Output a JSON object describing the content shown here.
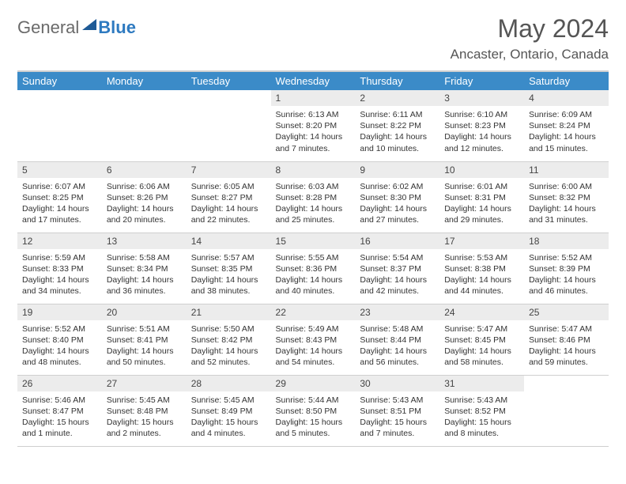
{
  "logo": {
    "text1": "General",
    "text2": "Blue"
  },
  "title": "May 2024",
  "location": "Ancaster, Ontario, Canada",
  "colors": {
    "header_bg": "#3b8bc8",
    "header_text": "#ffffff",
    "daynum_bg": "#ececec",
    "text": "#333333",
    "rule": "#cfcfcf",
    "title_color": "#555555"
  },
  "days_of_week": [
    "Sunday",
    "Monday",
    "Tuesday",
    "Wednesday",
    "Thursday",
    "Friday",
    "Saturday"
  ],
  "weeks": [
    [
      null,
      null,
      null,
      {
        "n": "1",
        "sr": "6:13 AM",
        "ss": "8:20 PM",
        "dl": "14 hours and 7 minutes."
      },
      {
        "n": "2",
        "sr": "6:11 AM",
        "ss": "8:22 PM",
        "dl": "14 hours and 10 minutes."
      },
      {
        "n": "3",
        "sr": "6:10 AM",
        "ss": "8:23 PM",
        "dl": "14 hours and 12 minutes."
      },
      {
        "n": "4",
        "sr": "6:09 AM",
        "ss": "8:24 PM",
        "dl": "14 hours and 15 minutes."
      }
    ],
    [
      {
        "n": "5",
        "sr": "6:07 AM",
        "ss": "8:25 PM",
        "dl": "14 hours and 17 minutes."
      },
      {
        "n": "6",
        "sr": "6:06 AM",
        "ss": "8:26 PM",
        "dl": "14 hours and 20 minutes."
      },
      {
        "n": "7",
        "sr": "6:05 AM",
        "ss": "8:27 PM",
        "dl": "14 hours and 22 minutes."
      },
      {
        "n": "8",
        "sr": "6:03 AM",
        "ss": "8:28 PM",
        "dl": "14 hours and 25 minutes."
      },
      {
        "n": "9",
        "sr": "6:02 AM",
        "ss": "8:30 PM",
        "dl": "14 hours and 27 minutes."
      },
      {
        "n": "10",
        "sr": "6:01 AM",
        "ss": "8:31 PM",
        "dl": "14 hours and 29 minutes."
      },
      {
        "n": "11",
        "sr": "6:00 AM",
        "ss": "8:32 PM",
        "dl": "14 hours and 31 minutes."
      }
    ],
    [
      {
        "n": "12",
        "sr": "5:59 AM",
        "ss": "8:33 PM",
        "dl": "14 hours and 34 minutes."
      },
      {
        "n": "13",
        "sr": "5:58 AM",
        "ss": "8:34 PM",
        "dl": "14 hours and 36 minutes."
      },
      {
        "n": "14",
        "sr": "5:57 AM",
        "ss": "8:35 PM",
        "dl": "14 hours and 38 minutes."
      },
      {
        "n": "15",
        "sr": "5:55 AM",
        "ss": "8:36 PM",
        "dl": "14 hours and 40 minutes."
      },
      {
        "n": "16",
        "sr": "5:54 AM",
        "ss": "8:37 PM",
        "dl": "14 hours and 42 minutes."
      },
      {
        "n": "17",
        "sr": "5:53 AM",
        "ss": "8:38 PM",
        "dl": "14 hours and 44 minutes."
      },
      {
        "n": "18",
        "sr": "5:52 AM",
        "ss": "8:39 PM",
        "dl": "14 hours and 46 minutes."
      }
    ],
    [
      {
        "n": "19",
        "sr": "5:52 AM",
        "ss": "8:40 PM",
        "dl": "14 hours and 48 minutes."
      },
      {
        "n": "20",
        "sr": "5:51 AM",
        "ss": "8:41 PM",
        "dl": "14 hours and 50 minutes."
      },
      {
        "n": "21",
        "sr": "5:50 AM",
        "ss": "8:42 PM",
        "dl": "14 hours and 52 minutes."
      },
      {
        "n": "22",
        "sr": "5:49 AM",
        "ss": "8:43 PM",
        "dl": "14 hours and 54 minutes."
      },
      {
        "n": "23",
        "sr": "5:48 AM",
        "ss": "8:44 PM",
        "dl": "14 hours and 56 minutes."
      },
      {
        "n": "24",
        "sr": "5:47 AM",
        "ss": "8:45 PM",
        "dl": "14 hours and 58 minutes."
      },
      {
        "n": "25",
        "sr": "5:47 AM",
        "ss": "8:46 PM",
        "dl": "14 hours and 59 minutes."
      }
    ],
    [
      {
        "n": "26",
        "sr": "5:46 AM",
        "ss": "8:47 PM",
        "dl": "15 hours and 1 minute."
      },
      {
        "n": "27",
        "sr": "5:45 AM",
        "ss": "8:48 PM",
        "dl": "15 hours and 2 minutes."
      },
      {
        "n": "28",
        "sr": "5:45 AM",
        "ss": "8:49 PM",
        "dl": "15 hours and 4 minutes."
      },
      {
        "n": "29",
        "sr": "5:44 AM",
        "ss": "8:50 PM",
        "dl": "15 hours and 5 minutes."
      },
      {
        "n": "30",
        "sr": "5:43 AM",
        "ss": "8:51 PM",
        "dl": "15 hours and 7 minutes."
      },
      {
        "n": "31",
        "sr": "5:43 AM",
        "ss": "8:52 PM",
        "dl": "15 hours and 8 minutes."
      },
      null
    ]
  ],
  "labels": {
    "sunrise": "Sunrise:",
    "sunset": "Sunset:",
    "daylight": "Daylight:"
  }
}
